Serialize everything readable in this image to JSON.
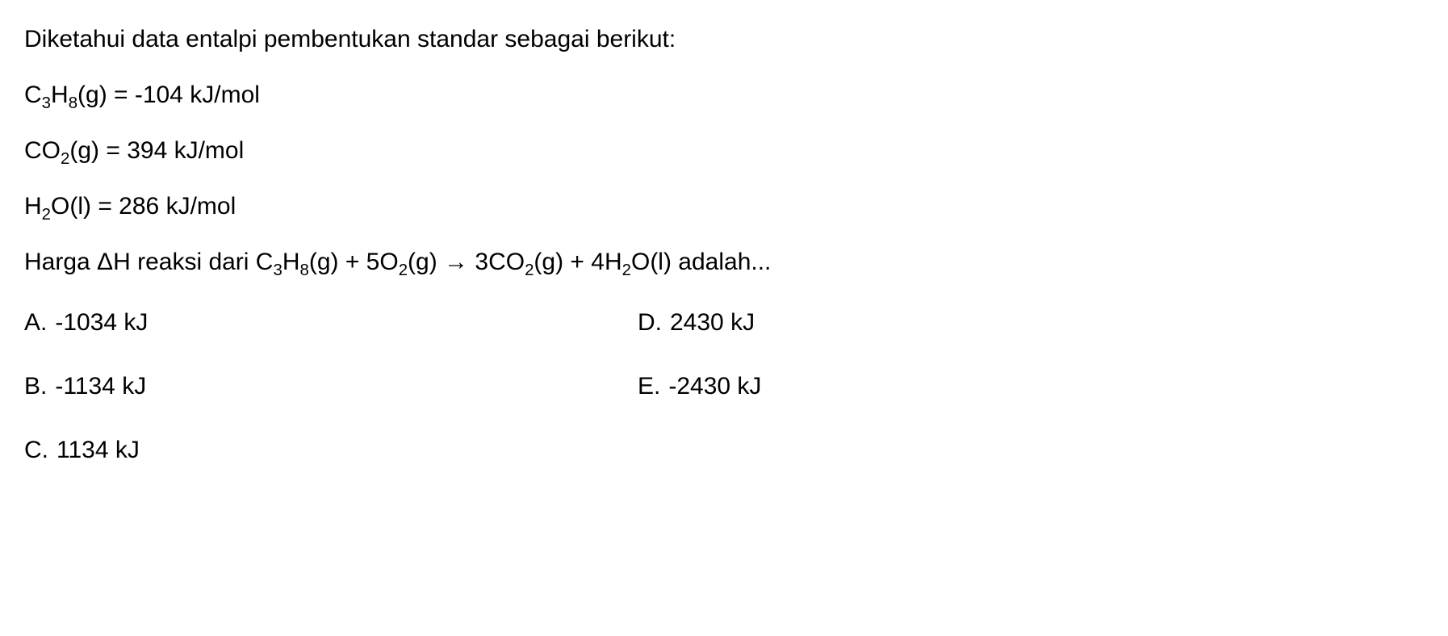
{
  "intro": "Diketahui data entalpi pembentukan standar sebagai berikut:",
  "given": {
    "c3h8_prefix": "C",
    "c3h8_sub1": "3",
    "c3h8_mid": "H",
    "c3h8_sub2": "8",
    "c3h8_suffix": "(g) = -104 kJ/mol",
    "co2_prefix": "CO",
    "co2_sub": "2",
    "co2_suffix": "(g) = 394 kJ/mol",
    "h2o_prefix": "H",
    "h2o_sub": "2",
    "h2o_suffix": "O(l) = 286 kJ/mol"
  },
  "prompt": {
    "pre": "Harga ΔH reaksi dari C",
    "s1": "3",
    "m1": "H",
    "s2": "8",
    "m2": "(g) + 5O",
    "s3": "2",
    "m3": "(g) → 3CO",
    "s4": "2",
    "m4": "(g) + 4H",
    "s5": "2",
    "m5": "O(l) adalah..."
  },
  "options": {
    "a_label": "A.",
    "a_text": "-1034 kJ",
    "b_label": "B.",
    "b_text": "-1134 kJ",
    "c_label": "C.",
    "c_text": "1134 kJ",
    "d_label": "D.",
    "d_text": "2430 kJ",
    "e_label": "E.",
    "e_text": "-2430 kJ"
  },
  "style": {
    "font_size_pt": 22,
    "text_color": "#000000",
    "background_color": "#ffffff",
    "font_family": "Segoe UI, Tahoma, Verdana, sans-serif"
  }
}
